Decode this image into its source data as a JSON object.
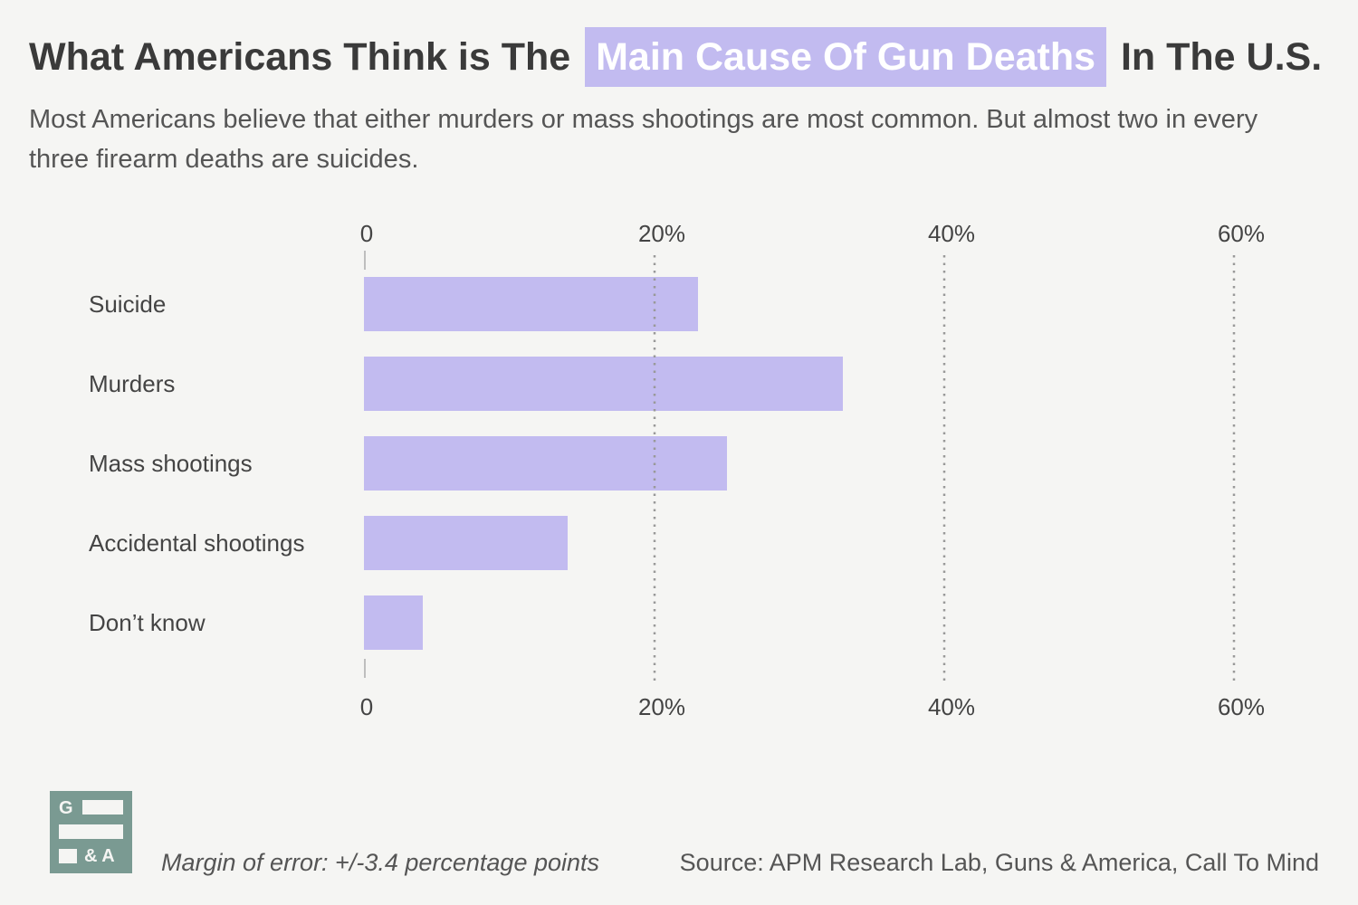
{
  "title": {
    "before": "What Americans Think is The",
    "highlight": "Main Cause Of Gun Deaths",
    "after": "In The U.S."
  },
  "subtitle": "Most Americans believe that either murders or mass shootings are most common. But almost two in every three firearm deaths are suicides.",
  "colors": {
    "bar": "#c2bbf0",
    "highlight_bg": "#c2bbf0",
    "logo": "#7a9a92",
    "grid": "#999999"
  },
  "chart_data": {
    "type": "bar",
    "orientation": "horizontal",
    "categories": [
      "Suicide",
      "Murders",
      "Mass shootings",
      "Accidental shootings",
      "Don’t know"
    ],
    "values": [
      23,
      33,
      25,
      14,
      4
    ],
    "unit": "%",
    "xlim": [
      0,
      60
    ],
    "ticks": [
      0,
      20,
      40,
      60
    ],
    "tick_labels": [
      "0",
      "20%",
      "40%",
      "60%"
    ],
    "grid": "dotted vertical",
    "axis_labels_position": "top and bottom"
  },
  "footer": {
    "logo_letters": {
      "top": "G",
      "bottom": "& A"
    },
    "note": "Margin of error: +/-3.4 percentage points",
    "source": "Source: APM Research Lab, Guns & America, Call To Mind"
  }
}
